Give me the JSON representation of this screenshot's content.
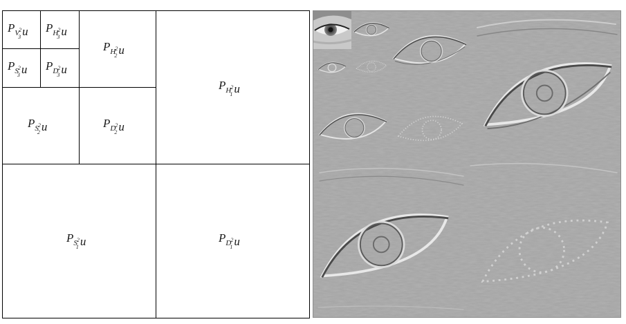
{
  "decomposition": {
    "symbol": "P",
    "function": "u",
    "exponent": "2",
    "cells": [
      {
        "id": "v3",
        "sub": "V",
        "idx": "3"
      },
      {
        "id": "h3",
        "sub": "H",
        "idx": "3"
      },
      {
        "id": "s3",
        "sub": "S",
        "idx": "3"
      },
      {
        "id": "d3",
        "sub": "D",
        "idx": "3"
      },
      {
        "id": "h2",
        "sub": "H",
        "idx": "2"
      },
      {
        "id": "s2",
        "sub": "S",
        "idx": "2"
      },
      {
        "id": "d2",
        "sub": "D",
        "idx": "2"
      },
      {
        "id": "h1",
        "sub": "H",
        "idx": "1"
      },
      {
        "id": "s1",
        "sub": "S",
        "idx": "1"
      },
      {
        "id": "d1",
        "sub": "D",
        "idx": "1"
      }
    ]
  },
  "image_panel": {
    "background": "#a3a3a3",
    "relief_light": "#d8d8d8",
    "relief_dark": "#5a5a5a",
    "eye_thumbnail": "eye-photo"
  }
}
